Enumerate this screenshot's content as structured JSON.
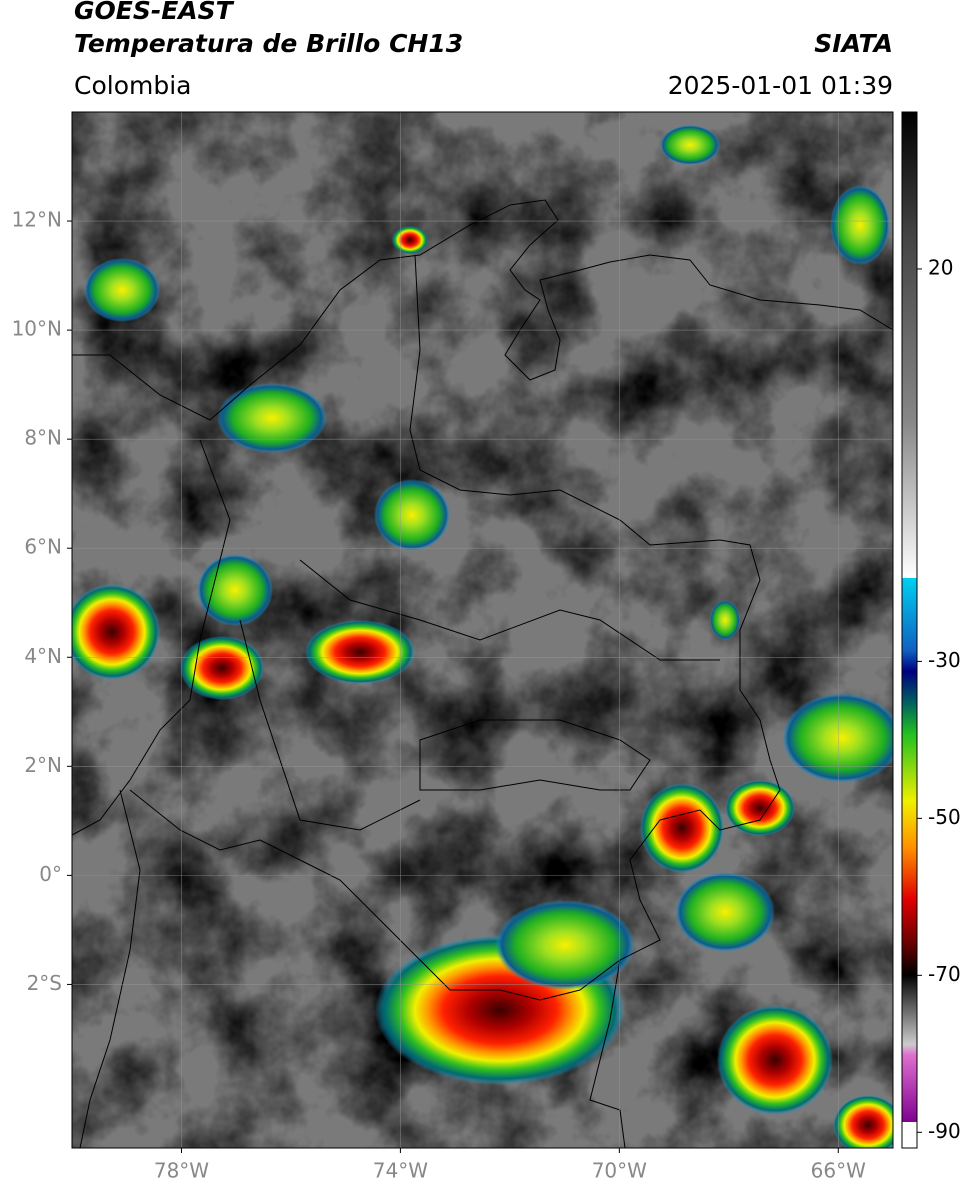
{
  "header": {
    "title": "GOES-EAST",
    "subtitle": "Temperatura de Brillo CH13",
    "region": "Colombia",
    "source": "SIATA",
    "datetime": "2025-01-01 01:39"
  },
  "map": {
    "xlim": [
      -80,
      -65
    ],
    "ylim": [
      -5,
      14
    ],
    "xticks": [
      {
        "value": -78,
        "label": "78°W"
      },
      {
        "value": -74,
        "label": "74°W"
      },
      {
        "value": -70,
        "label": "70°W"
      },
      {
        "value": -66,
        "label": "66°W"
      }
    ],
    "yticks": [
      {
        "value": 12,
        "label": "12°N"
      },
      {
        "value": 10,
        "label": "10°N"
      },
      {
        "value": 8,
        "label": "8°N"
      },
      {
        "value": 6,
        "label": "6°N"
      },
      {
        "value": 4,
        "label": "4°N"
      },
      {
        "value": 2,
        "label": "2°N"
      },
      {
        "value": 0,
        "label": "0°"
      },
      {
        "value": -2,
        "label": "2°S"
      }
    ],
    "grid": true
  },
  "colorbar": {
    "lim": [
      -92,
      40
    ],
    "ticks": [
      20,
      -30,
      -50,
      -70,
      -90
    ]
  }
}
